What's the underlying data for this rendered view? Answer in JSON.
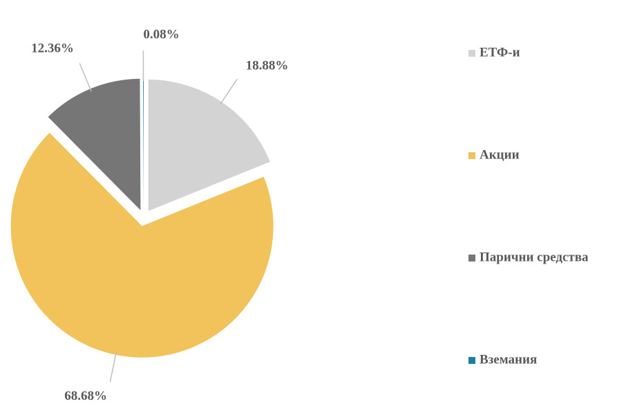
{
  "chart_data": {
    "type": "pie",
    "categories": [
      "ЕТФ-и",
      "Акции",
      "Парични средства",
      "Вземания"
    ],
    "values": [
      18.88,
      68.68,
      12.36,
      0.08
    ],
    "value_labels": [
      "18.88%",
      "68.68%",
      "12.36%",
      "0.08%"
    ],
    "colors": [
      "#d3d3d3",
      "#f2c25b",
      "#767676",
      "#1f7ea8"
    ],
    "legend": "right"
  }
}
